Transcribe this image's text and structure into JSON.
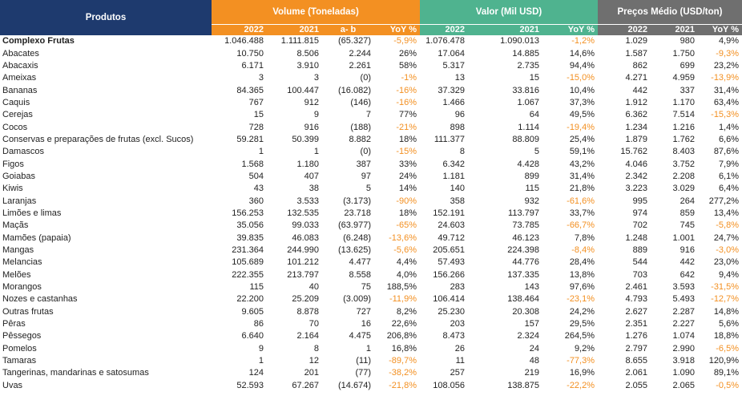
{
  "header": {
    "produtos": "Produtos",
    "volume": "Volume (Toneladas)",
    "valor": "Valor (Mil USD)",
    "precos": "Preços Médio (USD/ton)",
    "sub": {
      "v_2022": "2022",
      "v_2021": "2021",
      "v_ab": "a- b",
      "v_yoy": "YoY %",
      "u_2022": "2022",
      "u_2021": "2021",
      "u_yoy": "YoY %",
      "p_2022": "2022",
      "p_2021": "2021",
      "p_yoy": "YoY %"
    }
  },
  "colors": {
    "orange": "#f39022",
    "green": "#4fb38f",
    "grey": "#6f6f6f",
    "navy": "#1e3a6e"
  },
  "rows": [
    {
      "name": "Complexo Frutas",
      "v22": "1.046.488",
      "v21": "1.111.815",
      "ab": "(65.327)",
      "vy": "-5,9%",
      "u22": "1.076.478",
      "u21": "1.090.013",
      "uy": "-1,2%",
      "p22": "1.029",
      "p21": "980",
      "py": "4,9%"
    },
    {
      "name": "Abacates",
      "v22": "10.750",
      "v21": "8.506",
      "ab": "2.244",
      "vy": "26%",
      "u22": "17.064",
      "u21": "14.885",
      "uy": "14,6%",
      "p22": "1.587",
      "p21": "1.750",
      "py": "-9,3%"
    },
    {
      "name": "Abacaxis",
      "v22": "6.171",
      "v21": "3.910",
      "ab": "2.261",
      "vy": "58%",
      "u22": "5.317",
      "u21": "2.735",
      "uy": "94,4%",
      "p22": "862",
      "p21": "699",
      "py": "23,2%"
    },
    {
      "name": "Ameixas",
      "v22": "3",
      "v21": "3",
      "ab": "(0)",
      "vy": "-1%",
      "u22": "13",
      "u21": "15",
      "uy": "-15,0%",
      "p22": "4.271",
      "p21": "4.959",
      "py": "-13,9%"
    },
    {
      "name": "Bananas",
      "v22": "84.365",
      "v21": "100.447",
      "ab": "(16.082)",
      "vy": "-16%",
      "u22": "37.329",
      "u21": "33.816",
      "uy": "10,4%",
      "p22": "442",
      "p21": "337",
      "py": "31,4%"
    },
    {
      "name": "Caquis",
      "v22": "767",
      "v21": "912",
      "ab": "(146)",
      "vy": "-16%",
      "u22": "1.466",
      "u21": "1.067",
      "uy": "37,3%",
      "p22": "1.912",
      "p21": "1.170",
      "py": "63,4%"
    },
    {
      "name": "Cerejas",
      "v22": "15",
      "v21": "9",
      "ab": "7",
      "vy": "77%",
      "u22": "96",
      "u21": "64",
      "uy": "49,5%",
      "p22": "6.362",
      "p21": "7.514",
      "py": "-15,3%"
    },
    {
      "name": "Cocos",
      "v22": "728",
      "v21": "916",
      "ab": "(188)",
      "vy": "-21%",
      "u22": "898",
      "u21": "1.114",
      "uy": "-19,4%",
      "p22": "1.234",
      "p21": "1.216",
      "py": "1,4%"
    },
    {
      "name": "Conservas e preparações de frutas (excl. Sucos)",
      "v22": "59.281",
      "v21": "50.399",
      "ab": "8.882",
      "vy": "18%",
      "u22": "111.377",
      "u21": "88.809",
      "uy": "25,4%",
      "p22": "1.879",
      "p21": "1.762",
      "py": "6,6%"
    },
    {
      "name": "Damascos",
      "v22": "1",
      "v21": "1",
      "ab": "(0)",
      "vy": "-15%",
      "u22": "8",
      "u21": "5",
      "uy": "59,1%",
      "p22": "15.762",
      "p21": "8.403",
      "py": "87,6%"
    },
    {
      "name": "Figos",
      "v22": "1.568",
      "v21": "1.180",
      "ab": "387",
      "vy": "33%",
      "u22": "6.342",
      "u21": "4.428",
      "uy": "43,2%",
      "p22": "4.046",
      "p21": "3.752",
      "py": "7,9%"
    },
    {
      "name": "Goiabas",
      "v22": "504",
      "v21": "407",
      "ab": "97",
      "vy": "24%",
      "u22": "1.181",
      "u21": "899",
      "uy": "31,4%",
      "p22": "2.342",
      "p21": "2.208",
      "py": "6,1%"
    },
    {
      "name": "Kiwis",
      "v22": "43",
      "v21": "38",
      "ab": "5",
      "vy": "14%",
      "u22": "140",
      "u21": "115",
      "uy": "21,8%",
      "p22": "3.223",
      "p21": "3.029",
      "py": "6,4%"
    },
    {
      "name": "Laranjas",
      "v22": "360",
      "v21": "3.533",
      "ab": "(3.173)",
      "vy": "-90%",
      "u22": "358",
      "u21": "932",
      "uy": "-61,6%",
      "p22": "995",
      "p21": "264",
      "py": "277,2%"
    },
    {
      "name": "Limões e limas",
      "v22": "156.253",
      "v21": "132.535",
      "ab": "23.718",
      "vy": "18%",
      "u22": "152.191",
      "u21": "113.797",
      "uy": "33,7%",
      "p22": "974",
      "p21": "859",
      "py": "13,4%"
    },
    {
      "name": "Maçãs",
      "v22": "35.056",
      "v21": "99.033",
      "ab": "(63.977)",
      "vy": "-65%",
      "u22": "24.603",
      "u21": "73.785",
      "uy": "-66,7%",
      "p22": "702",
      "p21": "745",
      "py": "-5,8%"
    },
    {
      "name": "Mamões (papaia)",
      "v22": "39.835",
      "v21": "46.083",
      "ab": "(6.248)",
      "vy": "-13,6%",
      "u22": "49.712",
      "u21": "46.123",
      "uy": "7,8%",
      "p22": "1.248",
      "p21": "1.001",
      "py": "24,7%"
    },
    {
      "name": "Mangas",
      "v22": "231.364",
      "v21": "244.990",
      "ab": "(13.625)",
      "vy": "-5,6%",
      "u22": "205.651",
      "u21": "224.398",
      "uy": "-8,4%",
      "p22": "889",
      "p21": "916",
      "py": "-3,0%"
    },
    {
      "name": "Melancias",
      "v22": "105.689",
      "v21": "101.212",
      "ab": "4.477",
      "vy": "4,4%",
      "u22": "57.493",
      "u21": "44.776",
      "uy": "28,4%",
      "p22": "544",
      "p21": "442",
      "py": "23,0%"
    },
    {
      "name": "Melões",
      "v22": "222.355",
      "v21": "213.797",
      "ab": "8.558",
      "vy": "4,0%",
      "u22": "156.266",
      "u21": "137.335",
      "uy": "13,8%",
      "p22": "703",
      "p21": "642",
      "py": "9,4%"
    },
    {
      "name": "Morangos",
      "v22": "115",
      "v21": "40",
      "ab": "75",
      "vy": "188,5%",
      "u22": "283",
      "u21": "143",
      "uy": "97,6%",
      "p22": "2.461",
      "p21": "3.593",
      "py": "-31,5%"
    },
    {
      "name": "Nozes e castanhas",
      "v22": "22.200",
      "v21": "25.209",
      "ab": "(3.009)",
      "vy": "-11,9%",
      "u22": "106.414",
      "u21": "138.464",
      "uy": "-23,1%",
      "p22": "4.793",
      "p21": "5.493",
      "py": "-12,7%"
    },
    {
      "name": "Outras frutas",
      "v22": "9.605",
      "v21": "8.878",
      "ab": "727",
      "vy": "8,2%",
      "u22": "25.230",
      "u21": "20.308",
      "uy": "24,2%",
      "p22": "2.627",
      "p21": "2.287",
      "py": "14,8%"
    },
    {
      "name": "Pêras",
      "v22": "86",
      "v21": "70",
      "ab": "16",
      "vy": "22,6%",
      "u22": "203",
      "u21": "157",
      "uy": "29,5%",
      "p22": "2.351",
      "p21": "2.227",
      "py": "5,6%"
    },
    {
      "name": "Pêssegos",
      "v22": "6.640",
      "v21": "2.164",
      "ab": "4.475",
      "vy": "206,8%",
      "u22": "8.473",
      "u21": "2.324",
      "uy": "264,5%",
      "p22": "1.276",
      "p21": "1.074",
      "py": "18,8%"
    },
    {
      "name": "Pomelos",
      "v22": "9",
      "v21": "8",
      "ab": "1",
      "vy": "16,8%",
      "u22": "26",
      "u21": "24",
      "uy": "9,2%",
      "p22": "2.797",
      "p21": "2.990",
      "py": "-6,5%"
    },
    {
      "name": "Tamaras",
      "v22": "1",
      "v21": "12",
      "ab": "(11)",
      "vy": "-89,7%",
      "u22": "11",
      "u21": "48",
      "uy": "-77,3%",
      "p22": "8.655",
      "p21": "3.918",
      "py": "120,9%"
    },
    {
      "name": "Tangerinas, mandarinas e satosumas",
      "v22": "124",
      "v21": "201",
      "ab": "(77)",
      "vy": "-38,2%",
      "u22": "257",
      "u21": "219",
      "uy": "16,9%",
      "p22": "2.061",
      "p21": "1.090",
      "py": "89,1%"
    },
    {
      "name": "Uvas",
      "v22": "52.593",
      "v21": "67.267",
      "ab": "(14.674)",
      "vy": "-21,8%",
      "u22": "108.056",
      "u21": "138.875",
      "uy": "-22,2%",
      "p22": "2.055",
      "p21": "2.065",
      "py": "-0,5%"
    }
  ]
}
